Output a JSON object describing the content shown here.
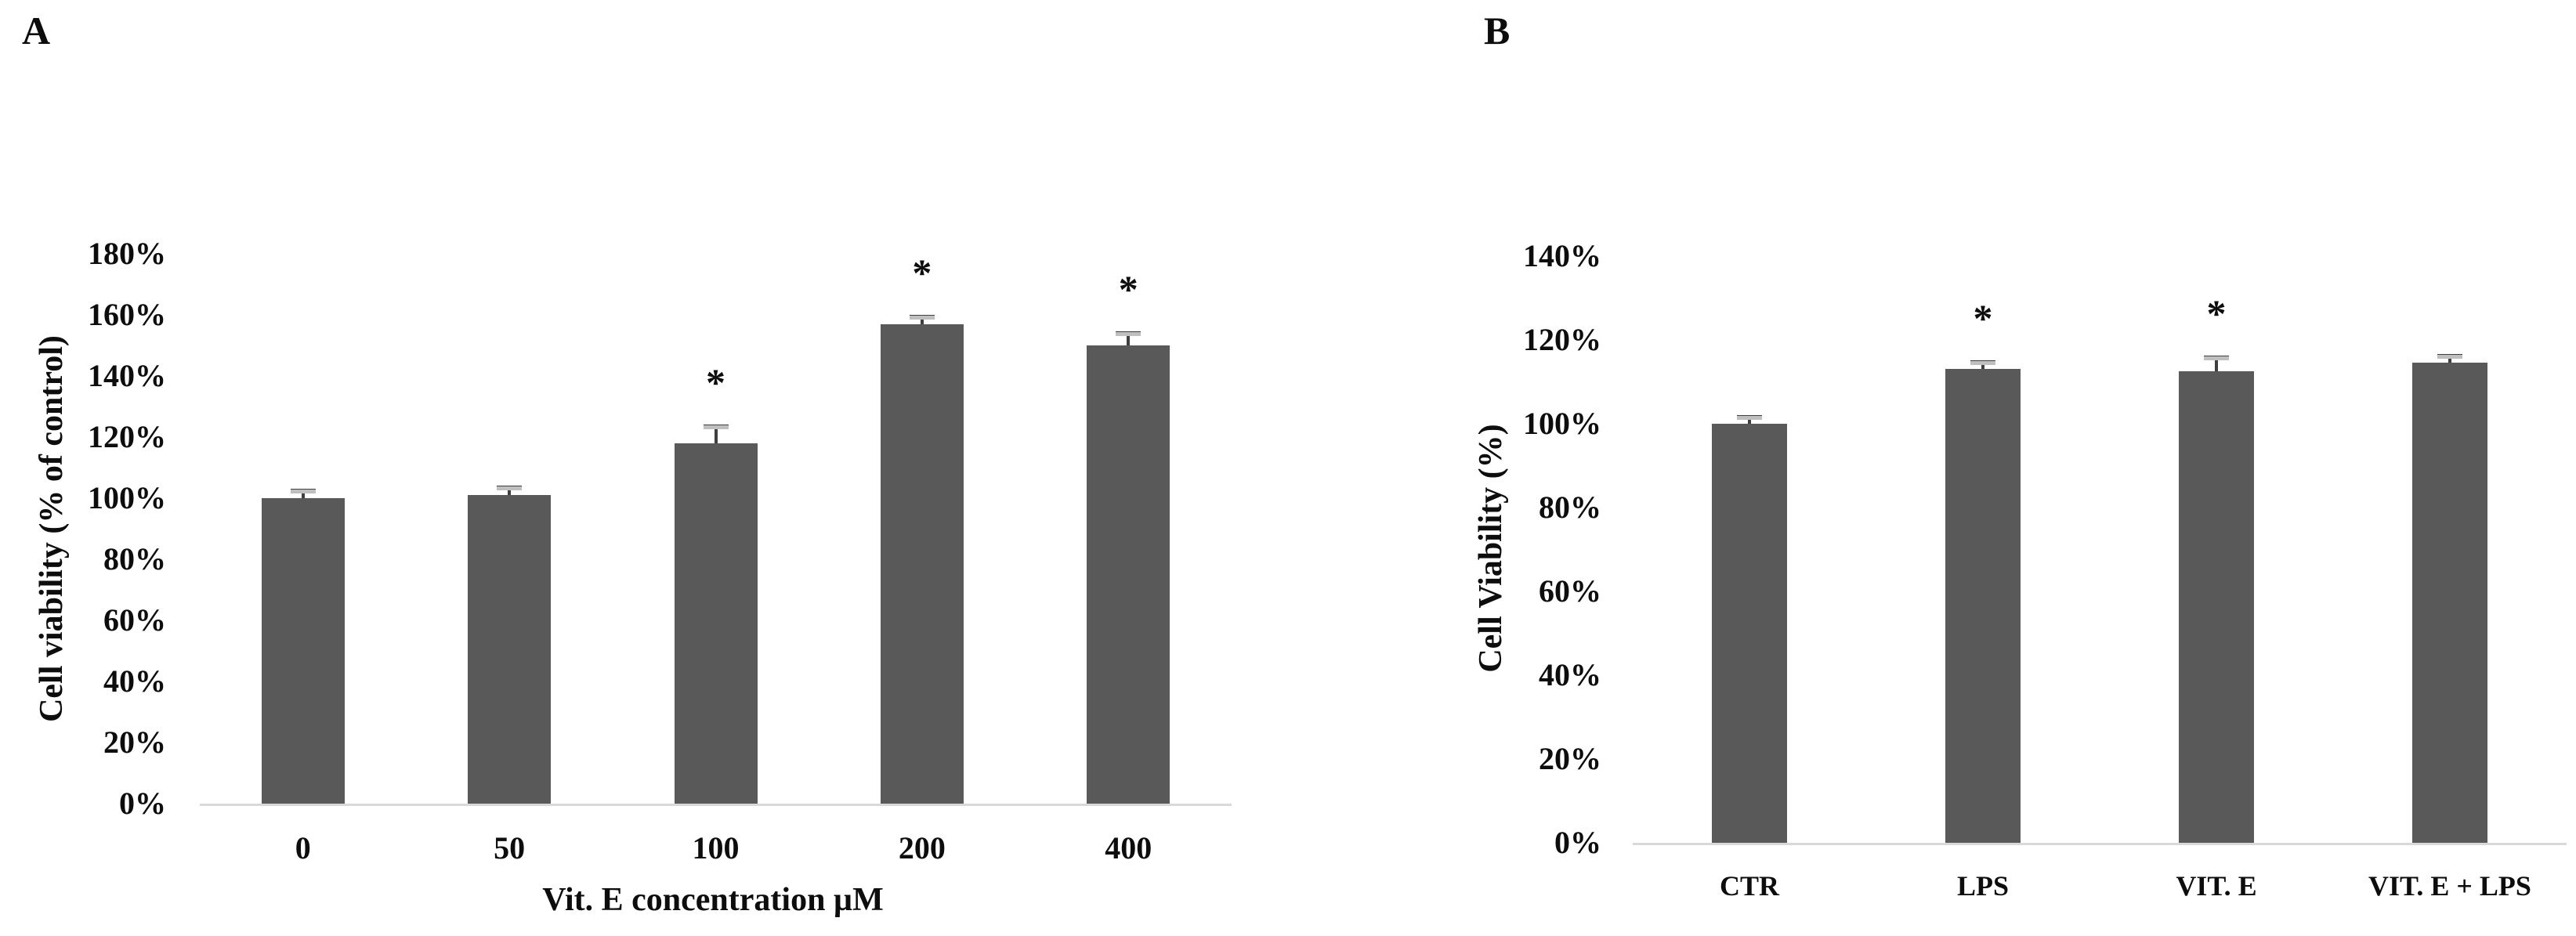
{
  "figure_labels": {
    "panel_a": "A",
    "panel_b": "B"
  },
  "significance_marker": "*",
  "colors": {
    "bar": "#595959",
    "axis_line": "#d9d9d9",
    "error_line": "#3f3f3f",
    "error_cap": "#bfbfbf",
    "text": "#0d0d0d"
  },
  "chart_data": [
    {
      "type": "bar",
      "panel": "A",
      "categories": [
        "0",
        "50",
        "100",
        "200",
        "400"
      ],
      "values": [
        100,
        101,
        118,
        157,
        150
      ],
      "errors_plus": [
        2,
        2,
        5,
        2,
        3.5
      ],
      "significant": [
        false,
        false,
        true,
        true,
        true
      ],
      "xlabel": "Vit. E concentration µM",
      "ylabel": "Cell viability (% of control)",
      "ylim": [
        0,
        180
      ],
      "ytick_step": 20,
      "ytick_suffix": "%",
      "grid": false,
      "legend": false
    },
    {
      "type": "bar",
      "panel": "B",
      "categories": [
        "CTR",
        "LPS",
        "VIT. E",
        "VIT. E + LPS"
      ],
      "values": [
        100,
        113,
        112.5,
        114.5
      ],
      "errors_plus": [
        1.3,
        1.3,
        3,
        1.3
      ],
      "significant": [
        false,
        true,
        true,
        false
      ],
      "xlabel": "",
      "ylabel": "Cell Viability (%)",
      "ylim": [
        0,
        140
      ],
      "ytick_step": 20,
      "ytick_suffix": "%",
      "grid": false,
      "legend": false
    }
  ]
}
